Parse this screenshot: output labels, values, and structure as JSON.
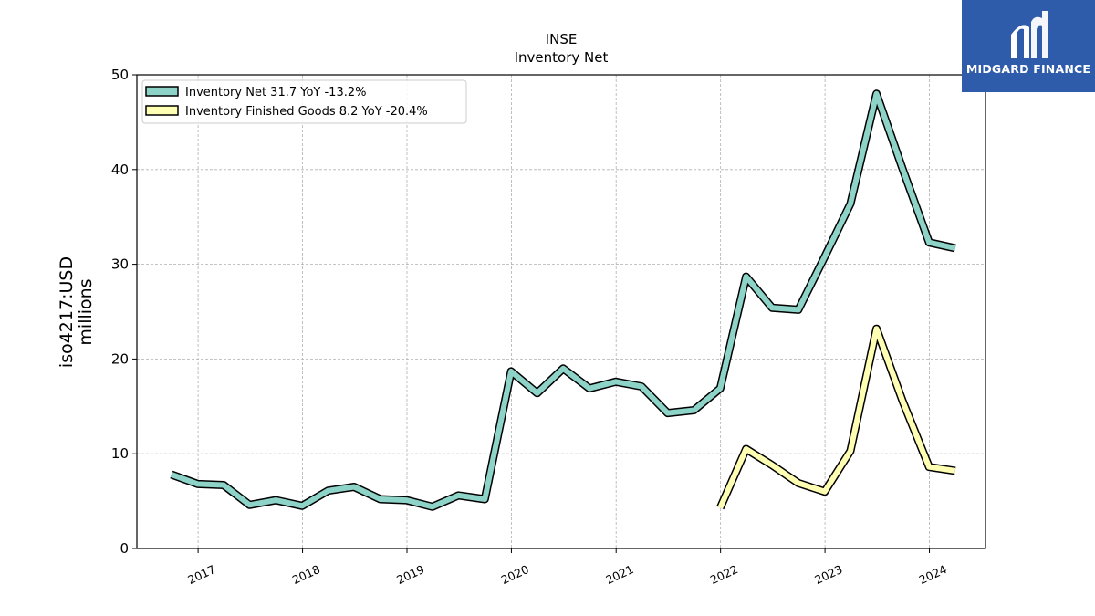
{
  "brand": {
    "name": "MIDGARD FINANCE",
    "logo_icon": "midgard-logo-icon",
    "background": "#2f5bab"
  },
  "chart_data": {
    "type": "line",
    "title": "INSE",
    "subtitle": "Inventory Net",
    "ylabel_line1": "iso4217:USD",
    "ylabel_line2": "millions",
    "xlabel": "",
    "ylim": [
      0,
      50
    ],
    "yticks": [
      0,
      10,
      20,
      30,
      40,
      50
    ],
    "xlim": [
      "2016-06-01",
      "2024-07-15"
    ],
    "xticks": [
      "2017",
      "2018",
      "2019",
      "2020",
      "2021",
      "2022",
      "2023",
      "2024"
    ],
    "grid": true,
    "legend_position": "top-left",
    "series": [
      {
        "name": "Inventory Net",
        "legend_label": "Inventory Net  31.7 YoY -13.2%",
        "color": "#8dd3c7",
        "points": [
          [
            "2016-09-30",
            7.8
          ],
          [
            "2016-12-31",
            6.8
          ],
          [
            "2017-03-31",
            6.7
          ],
          [
            "2017-06-30",
            4.6
          ],
          [
            "2017-09-30",
            5.1
          ],
          [
            "2017-12-31",
            4.5
          ],
          [
            "2018-03-31",
            6.1
          ],
          [
            "2018-06-30",
            6.5
          ],
          [
            "2018-09-30",
            5.2
          ],
          [
            "2018-12-31",
            5.1
          ],
          [
            "2019-03-31",
            4.4
          ],
          [
            "2019-06-30",
            5.6
          ],
          [
            "2019-09-30",
            5.2
          ],
          [
            "2019-12-31",
            18.7
          ],
          [
            "2020-03-31",
            16.4
          ],
          [
            "2020-06-30",
            19.0
          ],
          [
            "2020-09-30",
            16.9
          ],
          [
            "2020-12-31",
            17.6
          ],
          [
            "2021-03-31",
            17.1
          ],
          [
            "2021-06-30",
            14.3
          ],
          [
            "2021-09-30",
            14.6
          ],
          [
            "2021-12-31",
            16.9
          ],
          [
            "2022-03-31",
            28.7
          ],
          [
            "2022-06-30",
            25.4
          ],
          [
            "2022-09-30",
            25.2
          ],
          [
            "2022-12-31",
            30.8
          ],
          [
            "2023-03-31",
            36.4
          ],
          [
            "2023-06-30",
            48.0
          ],
          [
            "2023-09-30",
            40.0
          ],
          [
            "2023-12-31",
            32.3
          ],
          [
            "2024-03-31",
            31.7
          ]
        ]
      },
      {
        "name": "Inventory Finished Goods",
        "legend_label": "Inventory Finished Goods  8.2 YoY -20.4%",
        "color": "#ffffb3",
        "points": [
          [
            "2021-12-31",
            4.3
          ],
          [
            "2022-03-31",
            10.5
          ],
          [
            "2022-06-30",
            8.8
          ],
          [
            "2022-09-30",
            6.9
          ],
          [
            "2022-12-31",
            6.0
          ],
          [
            "2023-03-31",
            10.3
          ],
          [
            "2023-06-30",
            23.2
          ],
          [
            "2023-09-30",
            15.5
          ],
          [
            "2023-12-31",
            8.6
          ],
          [
            "2024-03-31",
            8.2
          ]
        ]
      }
    ]
  }
}
